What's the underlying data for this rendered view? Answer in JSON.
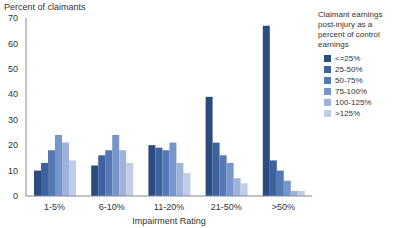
{
  "chart_data": {
    "type": "bar",
    "y_label": "Percent of claimants",
    "x_label": "Impairment Rating",
    "legend_title": "Claimant earnings post-injury as a percent of control earnings",
    "categories": [
      "1-5%",
      "6-10%",
      "11-20%",
      "21-50%",
      ">50%"
    ],
    "series": [
      {
        "name": "<=25%",
        "color": "#2B4C7E",
        "values": [
          10,
          12,
          20,
          39,
          67
        ]
      },
      {
        "name": "25-50%",
        "color": "#3D62A0",
        "values": [
          13,
          16,
          19,
          21,
          14
        ]
      },
      {
        "name": "50-75%",
        "color": "#5479B5",
        "values": [
          18,
          18,
          18,
          16,
          10
        ]
      },
      {
        "name": "75-100%",
        "color": "#7696CB",
        "values": [
          24,
          24,
          21,
          13,
          6
        ]
      },
      {
        "name": "100-125%",
        "color": "#9DB3DB",
        "values": [
          21,
          18,
          13,
          7,
          2
        ]
      },
      {
        "name": ">125%",
        "color": "#BFCDE7",
        "values": [
          14,
          13,
          9,
          5,
          2
        ]
      }
    ],
    "ylim": [
      0,
      70
    ],
    "yticks": [
      0,
      10,
      20,
      30,
      40,
      50,
      60,
      70
    ],
    "grid": false,
    "legend": "right"
  }
}
